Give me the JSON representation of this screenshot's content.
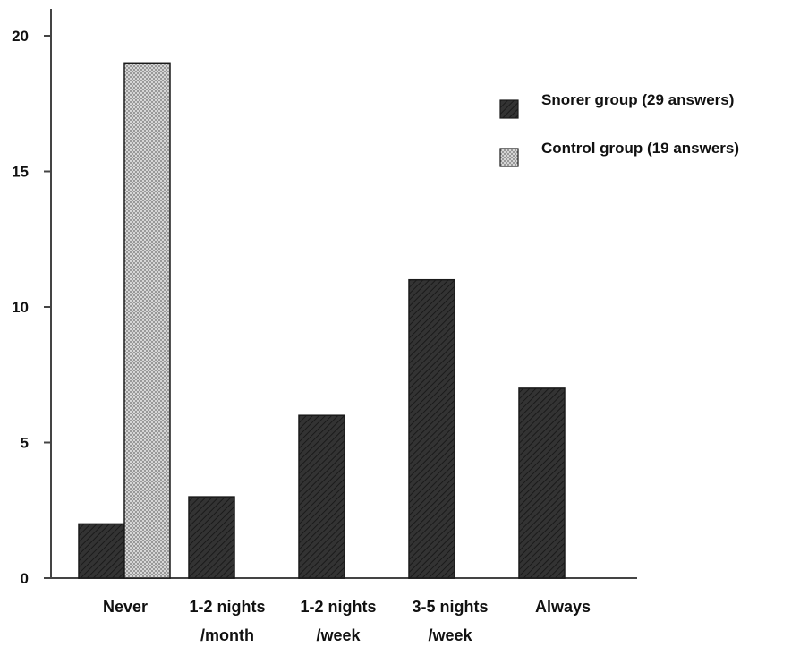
{
  "chart_data": {
    "type": "bar",
    "categories": [
      [
        "Never"
      ],
      [
        "1-2 nights",
        "/month"
      ],
      [
        "1-2 nights",
        "/week"
      ],
      [
        "3-5 nights",
        "/week"
      ],
      [
        "Always"
      ]
    ],
    "series": [
      {
        "name": "Snorer group (29 answers)",
        "values": [
          2,
          3,
          6,
          11,
          7
        ],
        "color": "#2e2e2e",
        "pattern": "diagonal-hatch"
      },
      {
        "name": "Control group (19 answers)",
        "values": [
          19,
          0,
          0,
          0,
          0
        ],
        "color": "#d4d4d4",
        "pattern": "crosshatch"
      }
    ],
    "ylim": [
      0,
      20
    ],
    "yticks": [
      0,
      5,
      10,
      15,
      20
    ],
    "title": "",
    "xlabel": "",
    "ylabel": "",
    "grid": false,
    "legend_position": "top-right"
  }
}
